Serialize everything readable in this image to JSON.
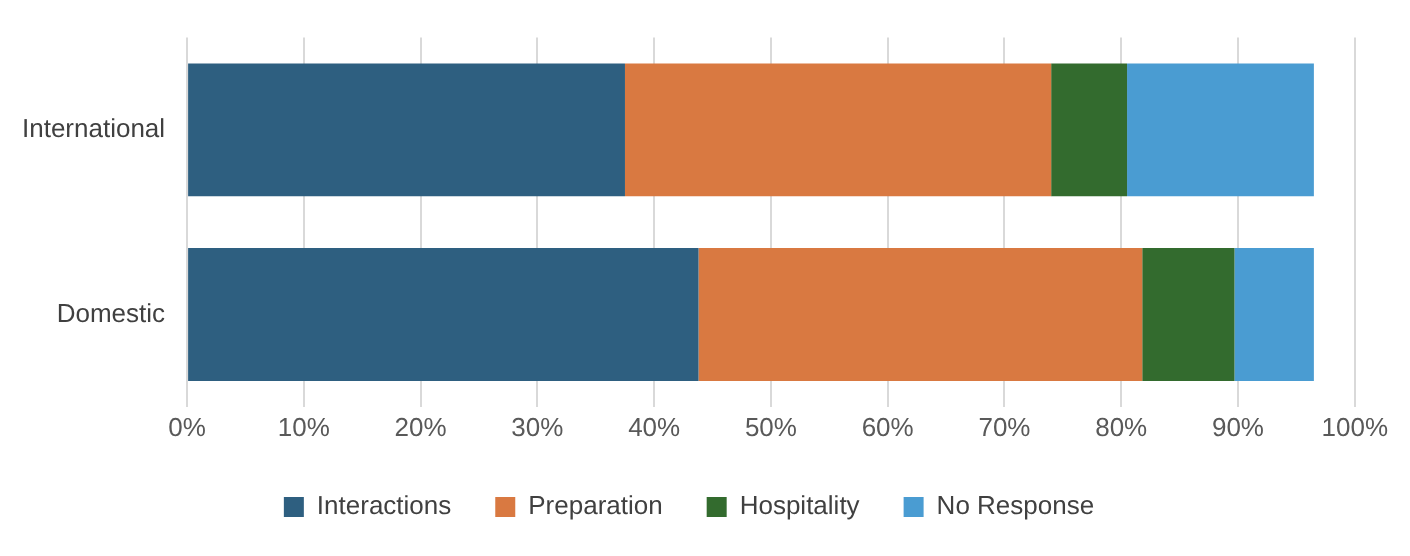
{
  "chart_data": {
    "type": "bar",
    "orientation": "horizontal",
    "stacked": true,
    "categories": [
      "International",
      "Domestic"
    ],
    "series": [
      {
        "name": "Interactions",
        "color": "#2e5f80",
        "values": [
          37.5,
          43.8
        ]
      },
      {
        "name": "Preparation",
        "color": "#d97941",
        "values": [
          36.5,
          38
        ]
      },
      {
        "name": "Hospitality",
        "color": "#336b2e",
        "values": [
          6.5,
          7.9
        ]
      },
      {
        "name": "No Response",
        "color": "#4a9cd2",
        "values": [
          16,
          6.8
        ]
      }
    ],
    "xlim": [
      0,
      100
    ],
    "xticks": [
      {
        "value": 0,
        "label": "0%"
      },
      {
        "value": 10,
        "label": "10%"
      },
      {
        "value": 20,
        "label": "20%"
      },
      {
        "value": 30,
        "label": "30%"
      },
      {
        "value": 40,
        "label": "40%"
      },
      {
        "value": 50,
        "label": "50%"
      },
      {
        "value": 60,
        "label": "60%"
      },
      {
        "value": 70,
        "label": "70%"
      },
      {
        "value": 80,
        "label": "80%"
      },
      {
        "value": 90,
        "label": "90%"
      },
      {
        "value": 100,
        "label": "100%"
      }
    ],
    "grid": "x",
    "legend": "bottom"
  }
}
